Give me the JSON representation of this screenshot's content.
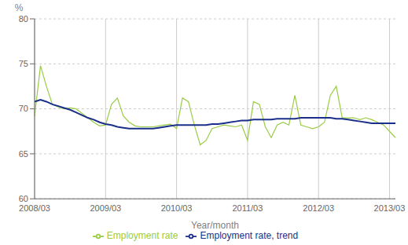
{
  "chart_data": {
    "type": "line",
    "xlabel": "Year/month",
    "ylabel": "%",
    "categories": [
      "2008/03",
      null,
      null,
      null,
      null,
      null,
      null,
      null,
      null,
      null,
      null,
      null,
      "2009/03",
      null,
      null,
      null,
      null,
      null,
      null,
      null,
      null,
      null,
      null,
      null,
      "2010/03",
      null,
      null,
      null,
      null,
      null,
      null,
      null,
      null,
      null,
      null,
      null,
      "2011/03",
      null,
      null,
      null,
      null,
      null,
      null,
      null,
      null,
      null,
      null,
      null,
      "2012/03",
      null,
      null,
      null,
      null,
      null,
      null,
      null,
      null,
      null,
      null,
      null,
      "2013/03",
      null
    ],
    "series": [
      {
        "name": "Employment rate",
        "color": "#99cc44",
        "values": [
          69.2,
          74.8,
          72.5,
          70.5,
          70.2,
          70.0,
          70.1,
          70.0,
          69.5,
          69.0,
          68.5,
          68.1,
          68.2,
          70.5,
          71.2,
          69.2,
          68.5,
          68.1,
          68.0,
          68.0,
          68.0,
          68.1,
          68.2,
          68.3,
          67.8,
          71.2,
          70.8,
          68.2,
          66.0,
          66.5,
          67.8,
          68.0,
          68.2,
          68.1,
          68.0,
          68.2,
          66.5,
          70.8,
          70.5,
          68.0,
          66.8,
          68.2,
          68.5,
          68.2,
          71.5,
          68.2,
          68.0,
          67.8,
          68.0,
          68.5,
          71.5,
          72.5,
          69.0,
          69.0,
          69.0,
          68.8,
          69.0,
          68.8,
          68.5,
          68.2,
          67.5,
          66.8
        ]
      },
      {
        "name": "Employment rate, trend",
        "color": "#1a2f8a",
        "values": [
          70.8,
          71.0,
          70.8,
          70.5,
          70.3,
          70.1,
          69.9,
          69.6,
          69.3,
          69.0,
          68.8,
          68.5,
          68.3,
          68.2,
          68.0,
          67.9,
          67.8,
          67.8,
          67.8,
          67.8,
          67.8,
          67.9,
          68.0,
          68.1,
          68.2,
          68.2,
          68.2,
          68.2,
          68.2,
          68.2,
          68.3,
          68.3,
          68.4,
          68.5,
          68.6,
          68.7,
          68.7,
          68.8,
          68.8,
          68.8,
          68.8,
          68.9,
          68.9,
          68.9,
          68.9,
          69.0,
          69.0,
          69.0,
          69.0,
          69.0,
          69.0,
          68.9,
          68.9,
          68.8,
          68.7,
          68.6,
          68.5,
          68.4,
          68.4,
          68.4,
          68.4,
          68.4
        ]
      }
    ],
    "ylim": [
      60,
      80
    ],
    "yticks": [
      60,
      65,
      70,
      75,
      80
    ],
    "grid": true,
    "legend": "bottom"
  }
}
